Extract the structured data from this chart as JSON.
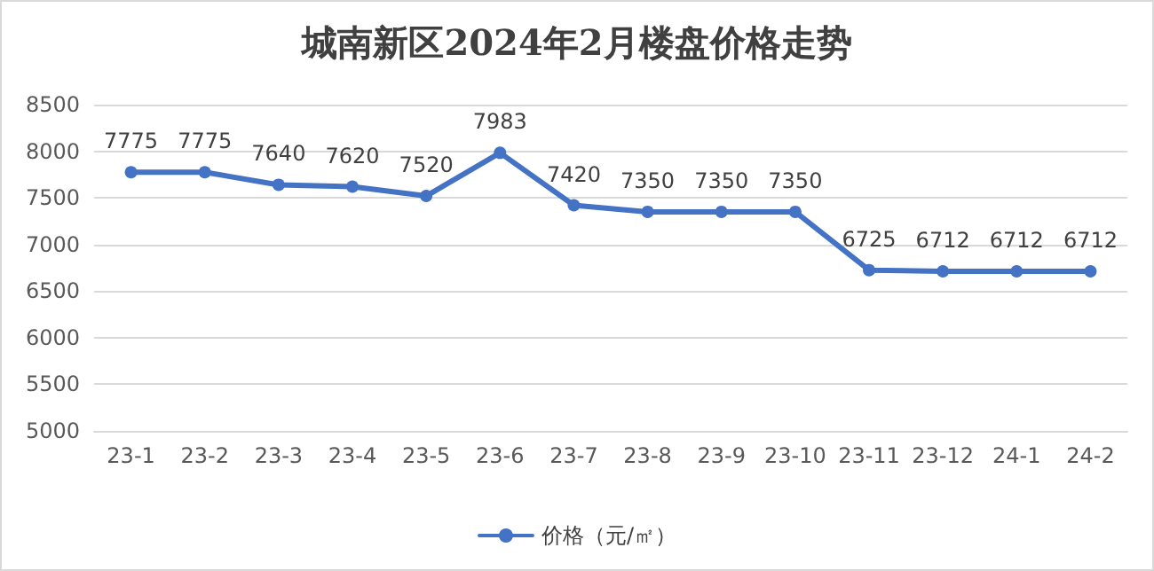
{
  "chart_data": {
    "type": "line",
    "title": "城南新区2024年2月楼盘价格走势",
    "categories": [
      "23-1",
      "23-2",
      "23-3",
      "23-4",
      "23-5",
      "23-6",
      "23-7",
      "23-8",
      "23-9",
      "23-10",
      "23-11",
      "23-12",
      "24-1",
      "24-2"
    ],
    "series": [
      {
        "name": "价格（元/㎡）",
        "color": "#4472c4",
        "values": [
          7775,
          7775,
          7640,
          7620,
          7520,
          7983,
          7420,
          7350,
          7350,
          7350,
          6725,
          6712,
          6712,
          6712
        ]
      }
    ],
    "ylim": [
      5000,
      8500
    ],
    "yticks": [
      5000,
      5500,
      6000,
      6500,
      7000,
      7500,
      8000,
      8500
    ],
    "grid": "y",
    "legend": "bottom",
    "marker": "circle",
    "line_style": "solid",
    "data_labels": true
  }
}
